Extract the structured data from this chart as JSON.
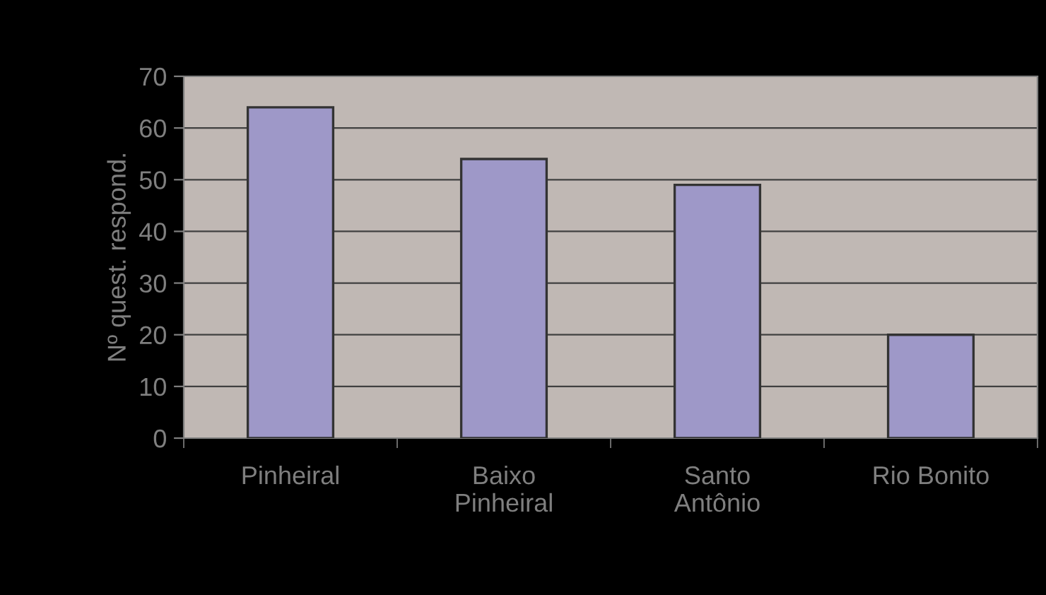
{
  "chart_data": {
    "type": "bar",
    "ylabel": "Nº quest. respond.",
    "categories": [
      "Pinheiral",
      "Baixo\nPinheiral",
      "Santo\nAntônio",
      "Rio Bonito"
    ],
    "values": [
      64,
      54,
      49,
      20
    ],
    "color": "#9e98c8",
    "ylim": [
      0,
      70
    ],
    "yticks": [
      0,
      10,
      20,
      30,
      40,
      50,
      60,
      70
    ],
    "grid": "y",
    "legend": false
  }
}
